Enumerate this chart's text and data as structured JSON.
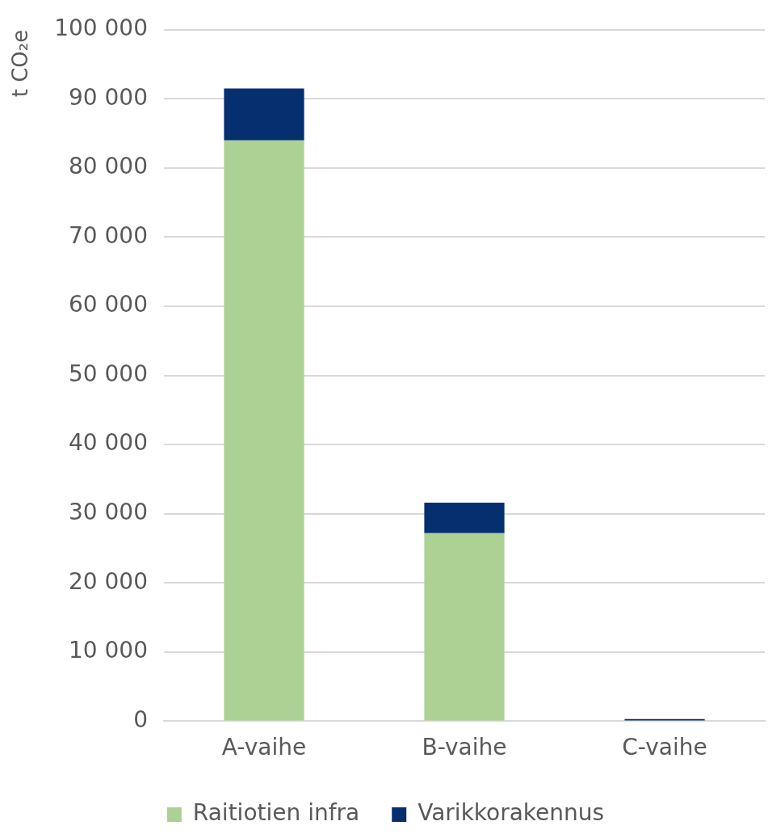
{
  "chart_data": {
    "type": "bar",
    "stacked": true,
    "ylabel": "t CO₂e",
    "categories": [
      "A-vaihe",
      "B-vaihe",
      "C-vaihe"
    ],
    "series": [
      {
        "name": "Raitiotien infra",
        "color": "#acd195",
        "values": [
          84000,
          27200,
          0
        ]
      },
      {
        "name": "Varikkorakennus",
        "color": "#052f6e",
        "values": [
          7500,
          4400,
          300
        ]
      }
    ],
    "ylim": [
      0,
      100000
    ],
    "yticks": [
      {
        "value": 0,
        "label": "0"
      },
      {
        "value": 10000,
        "label": "10 000"
      },
      {
        "value": 20000,
        "label": "20 000"
      },
      {
        "value": 30000,
        "label": "30 000"
      },
      {
        "value": 40000,
        "label": "40 000"
      },
      {
        "value": 50000,
        "label": "50 000"
      },
      {
        "value": 60000,
        "label": "60 000"
      },
      {
        "value": 70000,
        "label": "70 000"
      },
      {
        "value": 80000,
        "label": "80 000"
      },
      {
        "value": 90000,
        "label": "90 000"
      },
      {
        "value": 100000,
        "label": "100 000"
      }
    ],
    "grid": "y",
    "legend": "bottom"
  }
}
